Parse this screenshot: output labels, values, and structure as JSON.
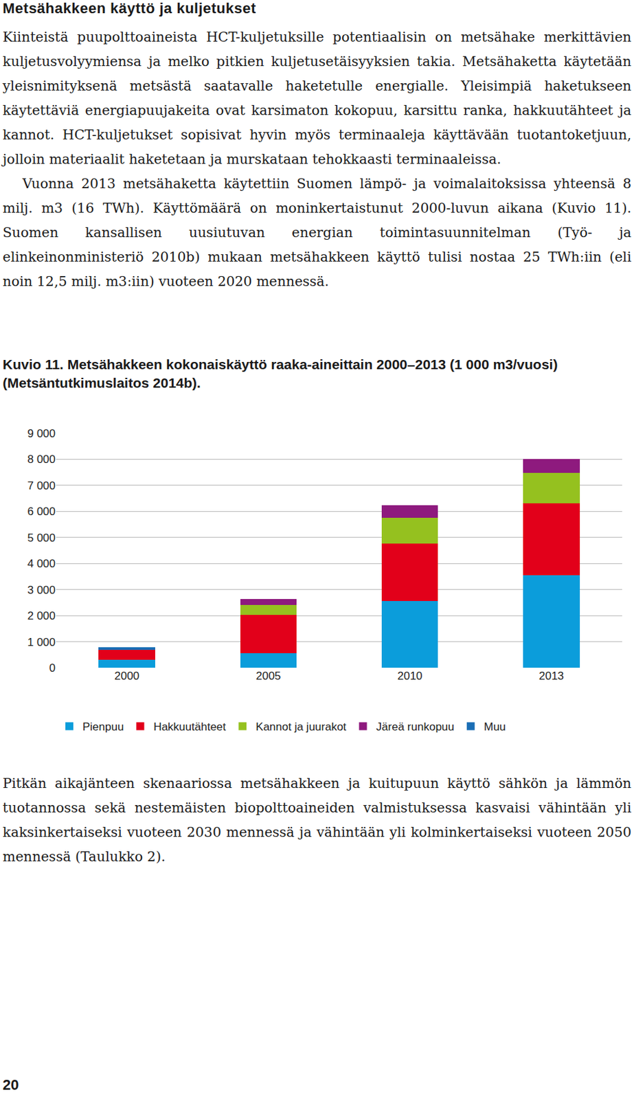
{
  "heading": "Metsähakkeen käyttö ja kuljetukset",
  "paragraphs": [
    "Kiinteistä puupolttoaineista HCT-kuljetuksille potentiaalisin on metsähake merkittävien kuljetusvolyymiensa ja melko pitkien kuljetusetäisyyksien takia. Metsähaketta käytetään yleisnimityksenä metsästä saatavalle haketetulle energialle. Yleisimpiä haketukseen käytettäviä energiapuujakeita ovat karsimaton kokopuu, karsittu ranka, hakkuutähteet ja kannot. HCT-kuljetukset sopisivat hyvin myös terminaaleja käyttävään tuotantoketjuun, jolloin materiaalit haketetaan ja murskataan tehokkaasti terminaaleissa.",
    "Vuonna 2013 metsähaketta käytettiin Suomen lämpö- ja voimalaitoksissa yhteensä 8 milj. m3 (16 TWh). Käyttömäärä on moninkertaistunut 2000-luvun aikana (Kuvio 11). Suomen kansallisen uusiutuvan energian toimintasuunnitelman (Työ- ja elinkeinonministeriö 2010b) mukaan metsähakkeen käyttö tulisi nostaa 25 TWh:iin (eli noin 12,5 milj. m3:iin) vuoteen 2020 mennessä."
  ],
  "caption": {
    "label": "Kuvio 11.",
    "text": "Metsähakkeen kokonaiskäyttö raaka-aineittain 2000–2013 (1 000 m3/vuosi) (Metsäntutkimuslaitos 2014b)."
  },
  "chart_data": {
    "type": "bar",
    "stacked": true,
    "grid": true,
    "legend": "bottom",
    "categories": [
      "2000",
      "2005",
      "2010",
      "2013"
    ],
    "series": [
      {
        "name": "Pienpuu",
        "color": "#0b9ddb",
        "values": [
          300,
          550,
          2550,
          3560
        ]
      },
      {
        "name": "Hakkuutähteet",
        "color": "#e2001a",
        "values": [
          380,
          1480,
          2210,
          2760
        ]
      },
      {
        "name": "Kannot ja juurakot",
        "color": "#95c11f",
        "values": [
          0,
          390,
          990,
          1150
        ]
      },
      {
        "name": "Järeä runkopuu",
        "color": "#8e1a7e",
        "values": [
          0,
          210,
          490,
          540
        ]
      },
      {
        "name": "Muu",
        "color": "#1a6eb5",
        "values": [
          100,
          0,
          0,
          0
        ]
      }
    ],
    "ylim": [
      0,
      9000
    ],
    "yticks": [
      0,
      {
        "value": 1000,
        "label": "1 000"
      },
      {
        "value": 2000,
        "label": "2 000"
      },
      {
        "value": 3000,
        "label": "3 000"
      },
      {
        "value": 4000,
        "label": "4 000"
      },
      {
        "value": 5000,
        "label": "5 000"
      },
      {
        "value": 6000,
        "label": "6 000"
      },
      {
        "value": 7000,
        "label": "7 000"
      },
      {
        "value": 8000,
        "label": "8 000"
      },
      {
        "value": 9000,
        "label": "9 000"
      }
    ]
  },
  "closing": "Pitkän aikajänteen skenaariossa metsähakkeen ja kuitupuun käyttö sähkön ja lämmön tuotannossa sekä nestemäisten biopolttoaineiden valmistuksessa kasvaisi vähintään yli kaksinkertaiseksi vuoteen 2030 mennessä ja vähintään yli kolminkertaiseksi vuoteen 2050 mennessä (Taulukko 2).",
  "page_number": "20"
}
